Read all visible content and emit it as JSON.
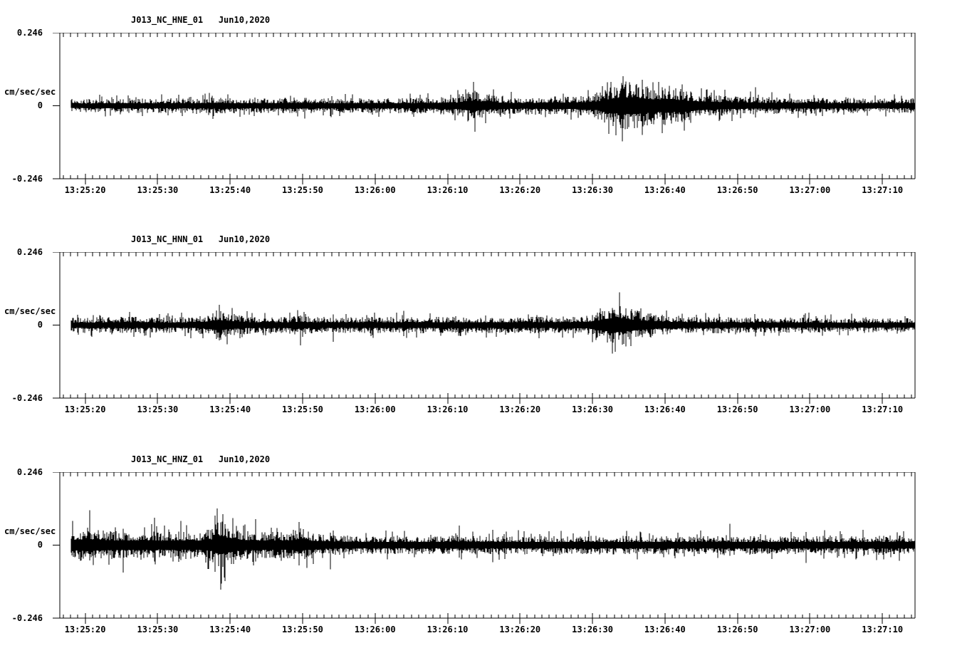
{
  "figure": {
    "background": "#ffffff",
    "ink": "#000000",
    "station_network": "NC",
    "date_label": "Jun10,2020"
  },
  "axis": {
    "y_max": "0.246",
    "y_zero": "0",
    "y_min": "-0.246",
    "units": "cm/sec/sec"
  },
  "chart_data": {
    "type": "line",
    "kind": "seismogram-waveform-3-channel",
    "title": "",
    "xlabel": "",
    "ylabel": "cm/sec/sec",
    "ylim": [
      -0.246,
      0.246
    ],
    "x_window": [
      "13:25:16.5",
      "13:27:14.5"
    ],
    "x_major_tick_seconds": 10,
    "x_minor_tick_seconds": 1,
    "grid": false,
    "legend": "none",
    "x_major_ticks": [
      "13:25:20",
      "13:25:30",
      "13:25:40",
      "13:25:50",
      "13:26:00",
      "13:26:10",
      "13:26:20",
      "13:26:30",
      "13:26:40",
      "13:26:50",
      "13:27:00",
      "13:27:10"
    ],
    "series": [
      {
        "name": "J013_NC_HNE_01",
        "title_text": "J013_NC_HNE_01   Jun10,2020",
        "seed": 7,
        "envelope_t_amp": [
          [
            -1.9,
            0.022
          ],
          [
            5,
            0.024
          ],
          [
            10,
            0.025
          ],
          [
            16,
            0.026
          ],
          [
            18.5,
            0.03
          ],
          [
            21,
            0.025
          ],
          [
            26,
            0.026
          ],
          [
            29,
            0.029
          ],
          [
            32,
            0.026
          ],
          [
            36,
            0.025
          ],
          [
            40,
            0.025
          ],
          [
            44,
            0.026
          ],
          [
            48,
            0.028
          ],
          [
            51.5,
            0.034
          ],
          [
            53.5,
            0.052
          ],
          [
            55.5,
            0.04
          ],
          [
            57,
            0.032
          ],
          [
            59,
            0.03
          ],
          [
            61,
            0.03
          ],
          [
            63,
            0.031
          ],
          [
            66,
            0.032
          ],
          [
            68,
            0.033
          ],
          [
            70,
            0.038
          ],
          [
            71.5,
            0.055
          ],
          [
            73,
            0.075
          ],
          [
            74.5,
            0.086
          ],
          [
            76,
            0.08
          ],
          [
            77.5,
            0.07
          ],
          [
            79,
            0.06
          ],
          [
            80.5,
            0.068
          ],
          [
            82,
            0.058
          ],
          [
            83.5,
            0.05
          ],
          [
            85,
            0.043
          ],
          [
            87,
            0.037
          ],
          [
            89,
            0.033
          ],
          [
            92,
            0.03
          ],
          [
            96,
            0.028
          ],
          [
            100,
            0.027
          ],
          [
            104,
            0.026
          ],
          [
            108,
            0.026
          ],
          [
            111,
            0.025
          ],
          [
            114.5,
            0.025
          ]
        ],
        "spikes": [
          {
            "t": 53.8,
            "u": 0.05,
            "d": 0.088
          },
          {
            "t": 74.2,
            "u": 0.1,
            "d": 0.075
          },
          {
            "t": 76.9,
            "u": 0.088,
            "d": 0.098
          },
          {
            "t": 79.6,
            "u": 0.062,
            "d": 0.092
          },
          {
            "t": 82.4,
            "u": 0.072,
            "d": 0.055
          },
          {
            "t": 92.5,
            "u": 0.062,
            "d": 0.04
          }
        ]
      },
      {
        "name": "J013_NC_HNN_01",
        "title_text": "J013_NC_HNN_01   Jun10,2020",
        "seed": 13,
        "envelope_t_amp": [
          [
            -1.9,
            0.026
          ],
          [
            4,
            0.027
          ],
          [
            7,
            0.029
          ],
          [
            10,
            0.026
          ],
          [
            14,
            0.027
          ],
          [
            16.5,
            0.032
          ],
          [
            18.3,
            0.052
          ],
          [
            19.8,
            0.042
          ],
          [
            21.5,
            0.032
          ],
          [
            24,
            0.028
          ],
          [
            27,
            0.027
          ],
          [
            29.5,
            0.033
          ],
          [
            31.5,
            0.028
          ],
          [
            35,
            0.027
          ],
          [
            39,
            0.028
          ],
          [
            43,
            0.027
          ],
          [
            47,
            0.028
          ],
          [
            51,
            0.028
          ],
          [
            55,
            0.027
          ],
          [
            59,
            0.028
          ],
          [
            63,
            0.028
          ],
          [
            66,
            0.029
          ],
          [
            69,
            0.031
          ],
          [
            70.5,
            0.042
          ],
          [
            72,
            0.062
          ],
          [
            73.5,
            0.072
          ],
          [
            75,
            0.058
          ],
          [
            76.5,
            0.048
          ],
          [
            78,
            0.04
          ],
          [
            80,
            0.034
          ],
          [
            83,
            0.03
          ],
          [
            86,
            0.028
          ],
          [
            90,
            0.027
          ],
          [
            95,
            0.026
          ],
          [
            100,
            0.026
          ],
          [
            105,
            0.025
          ],
          [
            110,
            0.024
          ],
          [
            114.5,
            0.024
          ]
        ],
        "spikes": [
          {
            "t": 18.5,
            "u": 0.068,
            "d": 0.052
          },
          {
            "t": 29.7,
            "u": 0.032,
            "d": 0.068
          },
          {
            "t": 34.2,
            "u": 0.036,
            "d": 0.056
          },
          {
            "t": 44,
            "u": 0.048,
            "d": 0.03
          },
          {
            "t": 72.7,
            "u": 0.058,
            "d": 0.096
          },
          {
            "t": 74.6,
            "u": 0.056,
            "d": 0.072
          }
        ]
      },
      {
        "name": "J013_NC_HNZ_01",
        "title_text": "J013_NC_HNZ_01   Jun10,2020",
        "seed": 42,
        "envelope_t_amp": [
          [
            -1.9,
            0.052
          ],
          [
            0.5,
            0.062
          ],
          [
            2,
            0.054
          ],
          [
            4,
            0.048
          ],
          [
            6,
            0.046
          ],
          [
            8,
            0.05
          ],
          [
            10,
            0.044
          ],
          [
            12,
            0.046
          ],
          [
            14,
            0.047
          ],
          [
            16,
            0.046
          ],
          [
            17.5,
            0.058
          ],
          [
            18.5,
            0.09
          ],
          [
            19.8,
            0.072
          ],
          [
            21,
            0.058
          ],
          [
            22.5,
            0.05
          ],
          [
            24,
            0.047
          ],
          [
            26,
            0.045
          ],
          [
            28,
            0.047
          ],
          [
            29.5,
            0.06
          ],
          [
            31,
            0.046
          ],
          [
            33,
            0.038
          ],
          [
            35,
            0.034
          ],
          [
            38,
            0.032
          ],
          [
            42,
            0.031
          ],
          [
            46,
            0.031
          ],
          [
            50,
            0.032
          ],
          [
            51.8,
            0.036
          ],
          [
            53.5,
            0.032
          ],
          [
            57,
            0.031
          ],
          [
            61,
            0.032
          ],
          [
            65,
            0.031
          ],
          [
            69,
            0.032
          ],
          [
            73,
            0.032
          ],
          [
            77,
            0.031
          ],
          [
            81,
            0.031
          ],
          [
            85,
            0.032
          ],
          [
            88.5,
            0.034
          ],
          [
            91,
            0.031
          ],
          [
            95,
            0.031
          ],
          [
            99,
            0.032
          ],
          [
            103,
            0.032
          ],
          [
            107,
            0.033
          ],
          [
            111,
            0.033
          ],
          [
            114.5,
            0.034
          ]
        ],
        "spikes": [
          {
            "t": 0.6,
            "u": 0.118,
            "d": 0.052
          },
          {
            "t": 5.2,
            "u": 0.055,
            "d": 0.092
          },
          {
            "t": 9.6,
            "u": 0.092,
            "d": 0.055
          },
          {
            "t": 13.2,
            "u": 0.082,
            "d": 0.05
          },
          {
            "t": 17.9,
            "u": 0.1,
            "d": 0.09
          },
          {
            "t": 18.7,
            "u": 0.072,
            "d": 0.15
          },
          {
            "t": 23.5,
            "u": 0.088,
            "d": 0.055
          },
          {
            "t": 29.5,
            "u": 0.078,
            "d": 0.068
          },
          {
            "t": 33.8,
            "u": 0.042,
            "d": 0.082
          },
          {
            "t": 51.6,
            "u": 0.066,
            "d": 0.042
          },
          {
            "t": 56.2,
            "u": 0.052,
            "d": 0.058
          },
          {
            "t": 89.0,
            "u": 0.072,
            "d": 0.036
          },
          {
            "t": 99.5,
            "u": 0.045,
            "d": 0.06
          }
        ]
      }
    ]
  }
}
